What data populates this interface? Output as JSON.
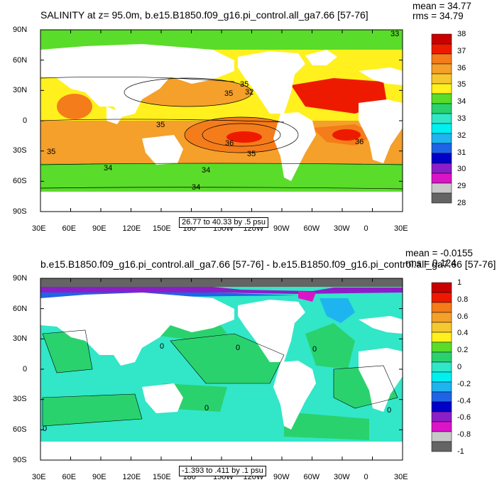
{
  "panels": [
    {
      "title": "SALINITY at z=  95.0m, b.e15.B1850.f09_g16.pi_control.all_ga7.66 [57-76]",
      "mean_label": "mean = 34.77",
      "rms_label": "rms = 34.79",
      "contour_info": "26.77 to 40.33 by .5 psu",
      "contour_labels": [
        "33",
        "35",
        "32",
        "35",
        "35",
        "36",
        "36",
        "35",
        "35",
        "34",
        "34",
        "34"
      ],
      "colorbar": {
        "labels": [
          "38",
          "37",
          "36",
          "35",
          "34",
          "33",
          "32",
          "31",
          "30",
          "29",
          "28"
        ],
        "colors": [
          "#c80000",
          "#ee1a00",
          "#f57c1a",
          "#f5a02a",
          "#f5c832",
          "#fff01e",
          "#5adc2a",
          "#2ad26e",
          "#32e6c8",
          "#00f0f0",
          "#1eb4f0",
          "#1e64e6",
          "#0000c8",
          "#8c1ec8",
          "#dc14c8",
          "#c8c8c8",
          "#646464"
        ]
      }
    },
    {
      "title": "b.e15.B1850.f09_g16.pi_control.all_ga7.66 [57-76] - b.e15.B1850.f09_g16.pi_control.all_ga7.66 [57-76]",
      "mean_label": "mean = -0.0155",
      "rms_label": "rms = 0.124",
      "contour_info": "-1.393 to .411 by .1 psu",
      "contour_labels": [
        "0",
        "0",
        "0",
        "0",
        "0",
        "0"
      ],
      "colorbar": {
        "labels": [
          "1",
          "0.8",
          "0.6",
          "0.4",
          "0.2",
          "0",
          "-0.2",
          "-0.4",
          "-0.6",
          "-0.8",
          "-1"
        ],
        "colors": [
          "#c80000",
          "#ee1a00",
          "#f57c1a",
          "#f5a02a",
          "#f5c832",
          "#fff01e",
          "#5adc2a",
          "#2ad26e",
          "#32e6c8",
          "#00f0f0",
          "#1eb4f0",
          "#1e64e6",
          "#0000c8",
          "#8c1ec8",
          "#dc14c8",
          "#c8c8c8",
          "#646464"
        ]
      }
    }
  ],
  "lat_ticks": [
    "90N",
    "60N",
    "30N",
    "0",
    "30S",
    "60S",
    "90S"
  ],
  "lon_ticks": [
    "30E",
    "60E",
    "90E",
    "120E",
    "150E",
    "180",
    "150W",
    "120W",
    "90W",
    "60W",
    "30W",
    "0",
    "30E"
  ]
}
